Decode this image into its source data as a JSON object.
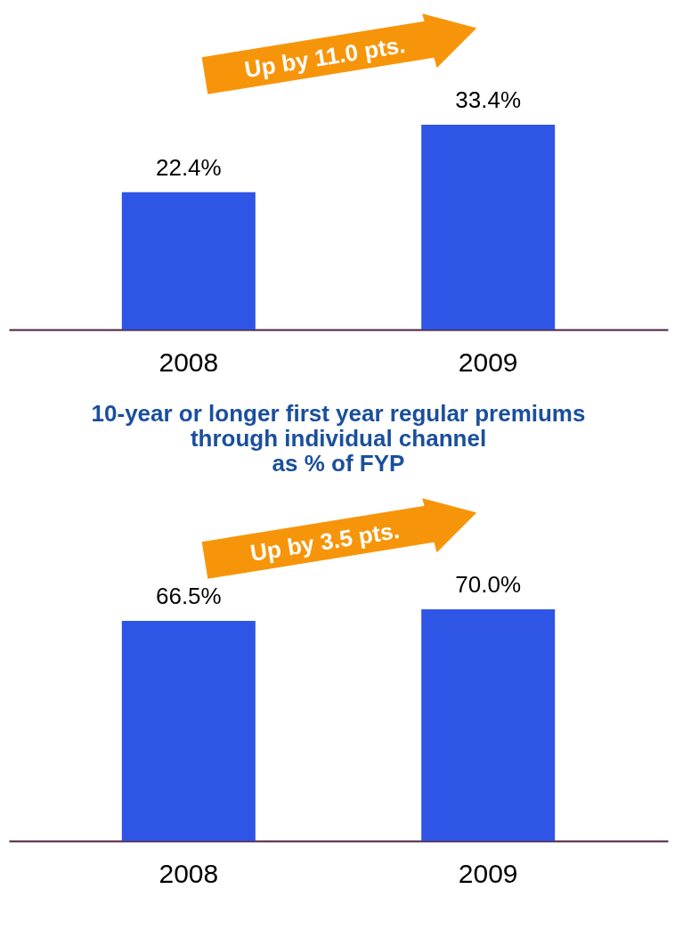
{
  "chart_data": [
    {
      "type": "bar",
      "categories": [
        "2008",
        "2009"
      ],
      "values": [
        22.4,
        33.4
      ],
      "color": "#2f55e6",
      "data_labels": true,
      "value_labels": [
        "22.4%",
        "33.4%"
      ],
      "annotations": [
        "Up by 11.0 pts."
      ]
    },
    {
      "type": "bar",
      "title": "10-year or longer first year regular premiums\nthrough individual channel\nas % of FYP",
      "categories": [
        "2008",
        "2009"
      ],
      "values": [
        66.5,
        70.0
      ],
      "color": "#2f55e6",
      "data_labels": true,
      "value_labels": [
        "66.5%",
        "70.0%"
      ],
      "annotations": [
        "Up by 3.5 pts."
      ]
    }
  ]
}
